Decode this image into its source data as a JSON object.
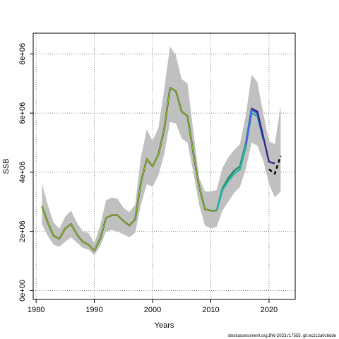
{
  "chart_data": {
    "type": "line",
    "xlabel": "Years",
    "ylabel": "SSB",
    "xlim": [
      1979.5,
      2024.5
    ],
    "ylim": [
      -300000,
      8700000
    ],
    "x_ticks": [
      1980,
      1990,
      2000,
      2010,
      2020
    ],
    "x_tick_labels": [
      "1980",
      "1990",
      "2000",
      "2010",
      "2020"
    ],
    "y_ticks": [
      0,
      2000000,
      4000000,
      6000000,
      8000000
    ],
    "y_tick_labels": [
      "0e+00",
      "2e+06",
      "4e+06",
      "6e+06",
      "8e+06"
    ],
    "grid": true,
    "grid_style": "dotted",
    "confidence_band": {
      "color": "#c0c0c0",
      "x": [
        1981,
        1982,
        1983,
        1984,
        1985,
        1986,
        1987,
        1988,
        1989,
        1990,
        1991,
        1992,
        1993,
        1994,
        1995,
        1996,
        1997,
        1998,
        1999,
        2000,
        2001,
        2002,
        2003,
        2004,
        2005,
        2006,
        2007,
        2008,
        2009,
        2010,
        2011,
        2012,
        2013,
        2014,
        2015,
        2016,
        2017,
        2018,
        2019,
        2020,
        2021,
        2022
      ],
      "lower": [
        2250000,
        1850000,
        1550000,
        1480000,
        1650000,
        1800000,
        1620000,
        1450000,
        1380000,
        1200000,
        1500000,
        2000000,
        2050000,
        2000000,
        1900000,
        1800000,
        1950000,
        2900000,
        3600000,
        3500000,
        3900000,
        4600000,
        5700000,
        5650000,
        5150000,
        5000000,
        4000000,
        2900000,
        2200000,
        2100000,
        2150000,
        2700000,
        3000000,
        3300000,
        3500000,
        4100000,
        5000000,
        4900000,
        4400000,
        3600000,
        3150000,
        3350000
      ],
      "upper": [
        3600000,
        2900000,
        2300000,
        2100000,
        2500000,
        2700000,
        2300000,
        2000000,
        1950000,
        1600000,
        2200000,
        3050000,
        3150000,
        3100000,
        2800000,
        2650000,
        2900000,
        4500000,
        5450000,
        5050000,
        5500000,
        6800000,
        8250000,
        7950000,
        7150000,
        7000000,
        5400000,
        3800000,
        3350000,
        3350000,
        3400000,
        4150000,
        4500000,
        4750000,
        4950000,
        5900000,
        7300000,
        7050000,
        6000000,
        5050000,
        4950000,
        6250000
      ]
    },
    "series": [
      {
        "color": "#556b2f",
        "x": [
          1981,
          1982,
          1983,
          1984,
          1985,
          1986,
          1987,
          1988,
          1989,
          1990,
          1991,
          1992,
          1993,
          1994,
          1995,
          1996,
          1997,
          1998,
          1999,
          2000,
          2001,
          2002,
          2003,
          2004,
          2005,
          2006,
          2007,
          2008,
          2009,
          2010,
          2011
        ],
        "values": [
          2850000,
          2300000,
          1850000,
          1750000,
          2100000,
          2250000,
          1900000,
          1650000,
          1550000,
          1350000,
          1750000,
          2450000,
          2550000,
          2550000,
          2350000,
          2200000,
          2400000,
          3650000,
          4450000,
          4200000,
          4600000,
          5450000,
          6850000,
          6750000,
          6050000,
          5900000,
          4650000,
          3500000,
          2750000,
          2700000,
          2700000
        ]
      },
      {
        "color": "#2e8b57",
        "x": [
          2011,
          2012,
          2013,
          2014,
          2015,
          2016,
          2017,
          2018
        ],
        "values": [
          2700000,
          3450000,
          3800000,
          4050000,
          4200000,
          4950000,
          6150000,
          6050000
        ]
      },
      {
        "color": "#20b2aa",
        "x": [
          2011,
          2012,
          2013,
          2014,
          2015,
          2016,
          2017,
          2018,
          2019
        ],
        "values": [
          2700000,
          3400000,
          3700000,
          3950000,
          4100000,
          4850000,
          6000000,
          5900000,
          5100000
        ]
      },
      {
        "color": "#4169e1",
        "x": [
          2016,
          2017,
          2018,
          2019
        ],
        "values": [
          4900000,
          6100000,
          6000000,
          5150000
        ]
      },
      {
        "color": "#3b2a8c",
        "x": [
          2017,
          2018,
          2019,
          2020,
          2021
        ],
        "values": [
          6150000,
          6050000,
          5200000,
          4350000,
          4300000
        ]
      },
      {
        "color": "#000000",
        "dashed": true,
        "x": [
          2020,
          2021,
          2022
        ],
        "values": [
          4100000,
          3950000,
          4550000
        ]
      }
    ],
    "annotation": "stockassessment.org,BW-2023,r17555, git:ec2c2a0c6dde"
  }
}
